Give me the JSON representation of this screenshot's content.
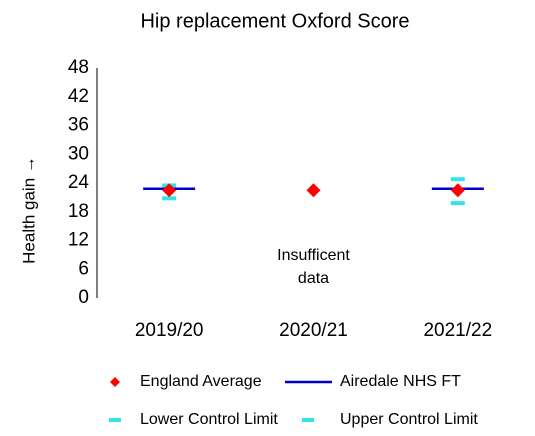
{
  "chart_data": {
    "type": "line",
    "title": "Hip replacement Oxford Score",
    "ylabel": "Health gain →",
    "categories": [
      "2019/20",
      "2020/21",
      "2021/22"
    ],
    "series": [
      {
        "name": "England Average",
        "color": "#ff0000",
        "marker": "diamond",
        "values": [
          22.5,
          22.5,
          22.5
        ]
      },
      {
        "name": "Airedale NHS FT",
        "color": "#0000cc",
        "marker": "hline",
        "values": [
          22.8,
          null,
          22.8
        ]
      },
      {
        "name": "Lower Control Limit",
        "color": "#33e6e6",
        "marker": "dash",
        "values": [
          20.8,
          null,
          19.8
        ]
      },
      {
        "name": "Upper Control Limit",
        "color": "#33e6e6",
        "marker": "dash",
        "values": [
          23.5,
          null,
          24.8
        ]
      }
    ],
    "annotations": [
      {
        "text": "Insufficent data",
        "category": "2020/21"
      }
    ],
    "ylim": [
      0,
      48
    ],
    "yticks": [
      0,
      6,
      12,
      18,
      24,
      30,
      36,
      42,
      48
    ],
    "legend": "bottom"
  }
}
